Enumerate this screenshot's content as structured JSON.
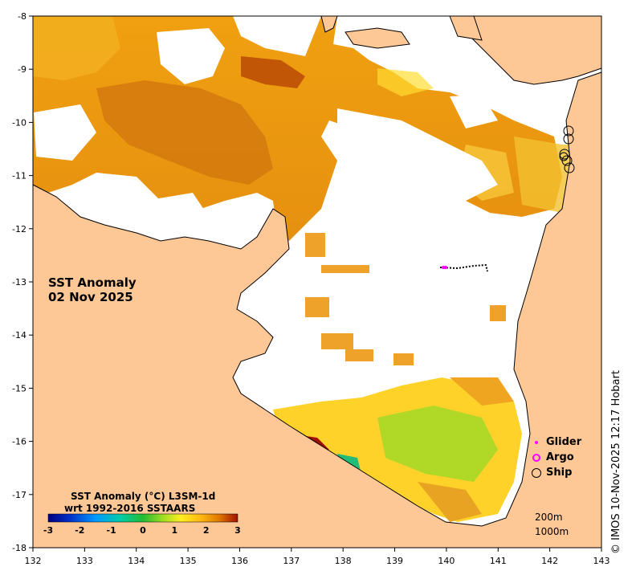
{
  "map": {
    "title_line1": "SST Anomaly",
    "title_line2": "02 Nov 2025",
    "x_ticks": [
      "132",
      "133",
      "134",
      "135",
      "136",
      "137",
      "138",
      "139",
      "140",
      "141",
      "142",
      "143"
    ],
    "y_ticks": [
      "-8",
      "-9",
      "-10",
      "-11",
      "-12",
      "-13",
      "-14",
      "-15",
      "-16",
      "-17",
      "-18"
    ],
    "lon_range": [
      132,
      143
    ],
    "lat_range": [
      -18,
      -8
    ],
    "land_color": "#fdc896",
    "nodata_color": "#ffffff"
  },
  "colorbar": {
    "title_line1": "SST Anomaly (°C) L3SM-1d",
    "title_line2": "wrt 1992-2016 SSTAARS",
    "ticks": [
      "-3",
      "-2",
      "-1",
      "0",
      "1",
      "2",
      "3"
    ],
    "range": [
      -3,
      3
    ],
    "colors": [
      "#00007f",
      "#0033cc",
      "#0099ff",
      "#00ccaa",
      "#22bb33",
      "#99dd22",
      "#ffee22",
      "#ffbb11",
      "#e07a00",
      "#a01000"
    ]
  },
  "legend": {
    "glider": "Glider",
    "argo": "Argo",
    "ship": "Ship",
    "glider_color": "#ff00ff",
    "argo_color": "#ff00ff",
    "ship_color": "#000000"
  },
  "depth": {
    "line1": "200m",
    "line2": "1000m"
  },
  "credit": "© IMOS 10-Nov-2025 12:17 Hobart"
}
